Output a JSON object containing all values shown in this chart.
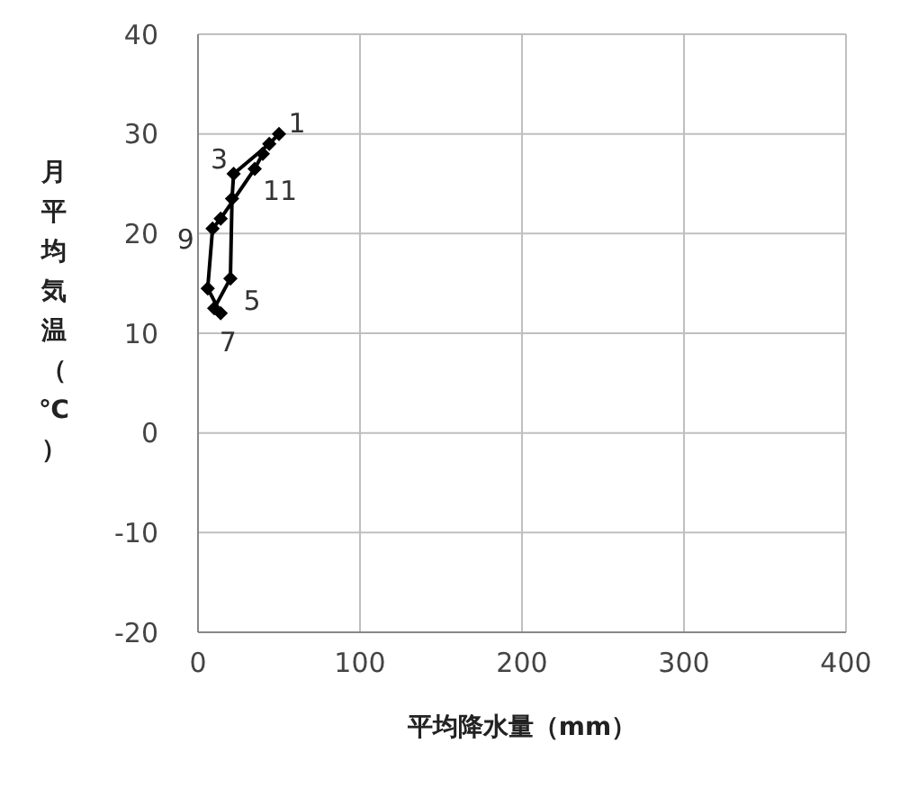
{
  "chart_data": {
    "type": "line",
    "xlabel": "平均降水量（mm）",
    "ylabel": "月平均気温（℃）",
    "xlim": [
      0,
      400
    ],
    "xticks": [
      0,
      100,
      200,
      300,
      400
    ],
    "ylim": [
      -20,
      40
    ],
    "yticks": [
      -20,
      -10,
      0,
      10,
      20,
      30,
      40
    ],
    "grid": true,
    "marker": "diamond",
    "line_style": "solid",
    "series": [
      {
        "color": "#000000",
        "x": [
          50,
          44,
          22,
          21,
          20,
          10,
          14,
          6,
          9,
          14,
          35,
          40
        ],
        "values": [
          30,
          29,
          26,
          23.5,
          15.5,
          12.5,
          12,
          14.5,
          20.5,
          21.5,
          26.5,
          28
        ]
      }
    ],
    "annotations": [
      {
        "text": "1",
        "x": 50,
        "y": 30
      },
      {
        "text": "3",
        "x": 22,
        "y": 26
      },
      {
        "text": "5",
        "x": 20,
        "y": 15.5
      },
      {
        "text": "7",
        "x": 14,
        "y": 12
      },
      {
        "text": "9",
        "x": 9,
        "y": 20.5
      },
      {
        "text": "11",
        "x": 35,
        "y": 26.5
      }
    ]
  }
}
